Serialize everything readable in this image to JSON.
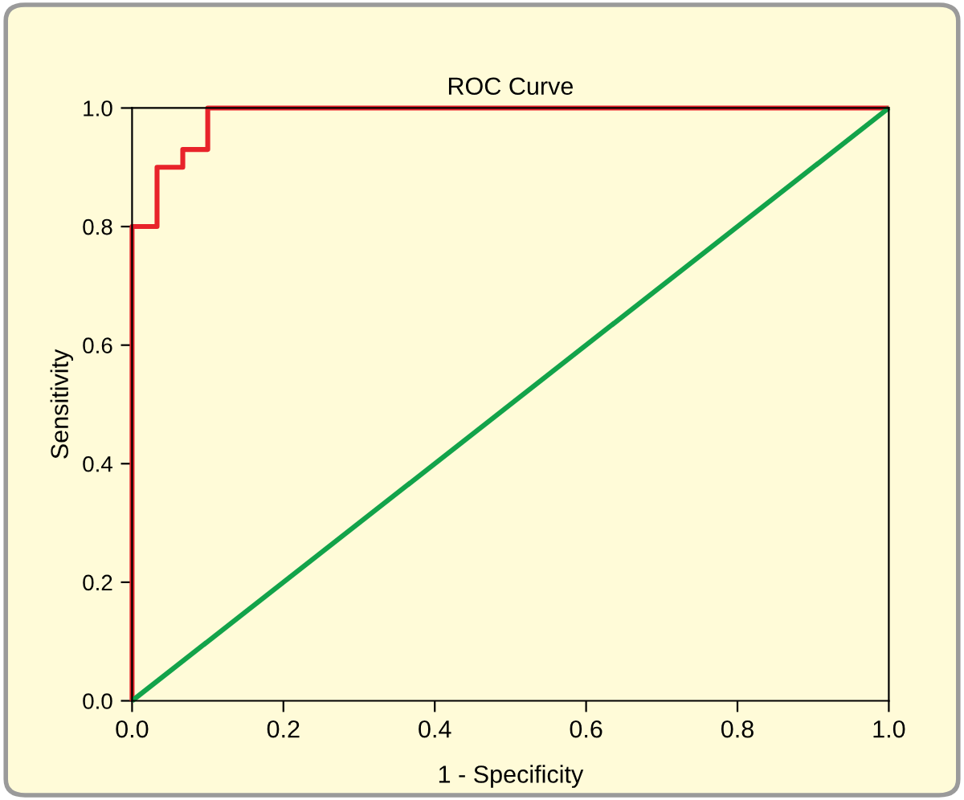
{
  "chart_data": {
    "type": "line",
    "title": "ROC Curve",
    "xlabel": "1 - Specificity",
    "ylabel": "Sensitivity",
    "series": [
      {
        "color": "#e8232a",
        "x": [
          0,
          0,
          0.033,
          0.033,
          0.067,
          0.067,
          0.1,
          0.1,
          1.0
        ],
        "values": [
          0,
          0.8,
          0.8,
          0.9,
          0.9,
          0.93,
          0.93,
          1.0,
          1.0
        ]
      },
      {
        "color": "#12a34a",
        "x": [
          0,
          1.0
        ],
        "values": [
          0,
          1.0
        ]
      }
    ],
    "xlim": [
      0,
      1.0
    ],
    "ylim": [
      0,
      1.0
    ],
    "xticks": [
      {
        "value": 0,
        "label": "0.0"
      },
      0.2,
      0.4,
      0.6,
      0.8,
      {
        "value": 1,
        "label": "1.0"
      }
    ],
    "yticks": [
      {
        "value": 0,
        "label": "0.0"
      },
      0.2,
      0.4,
      0.6,
      0.8,
      {
        "value": 1,
        "label": "1.0"
      }
    ],
    "grid": false,
    "legend": false,
    "marker": "none",
    "line_style": "solid"
  }
}
